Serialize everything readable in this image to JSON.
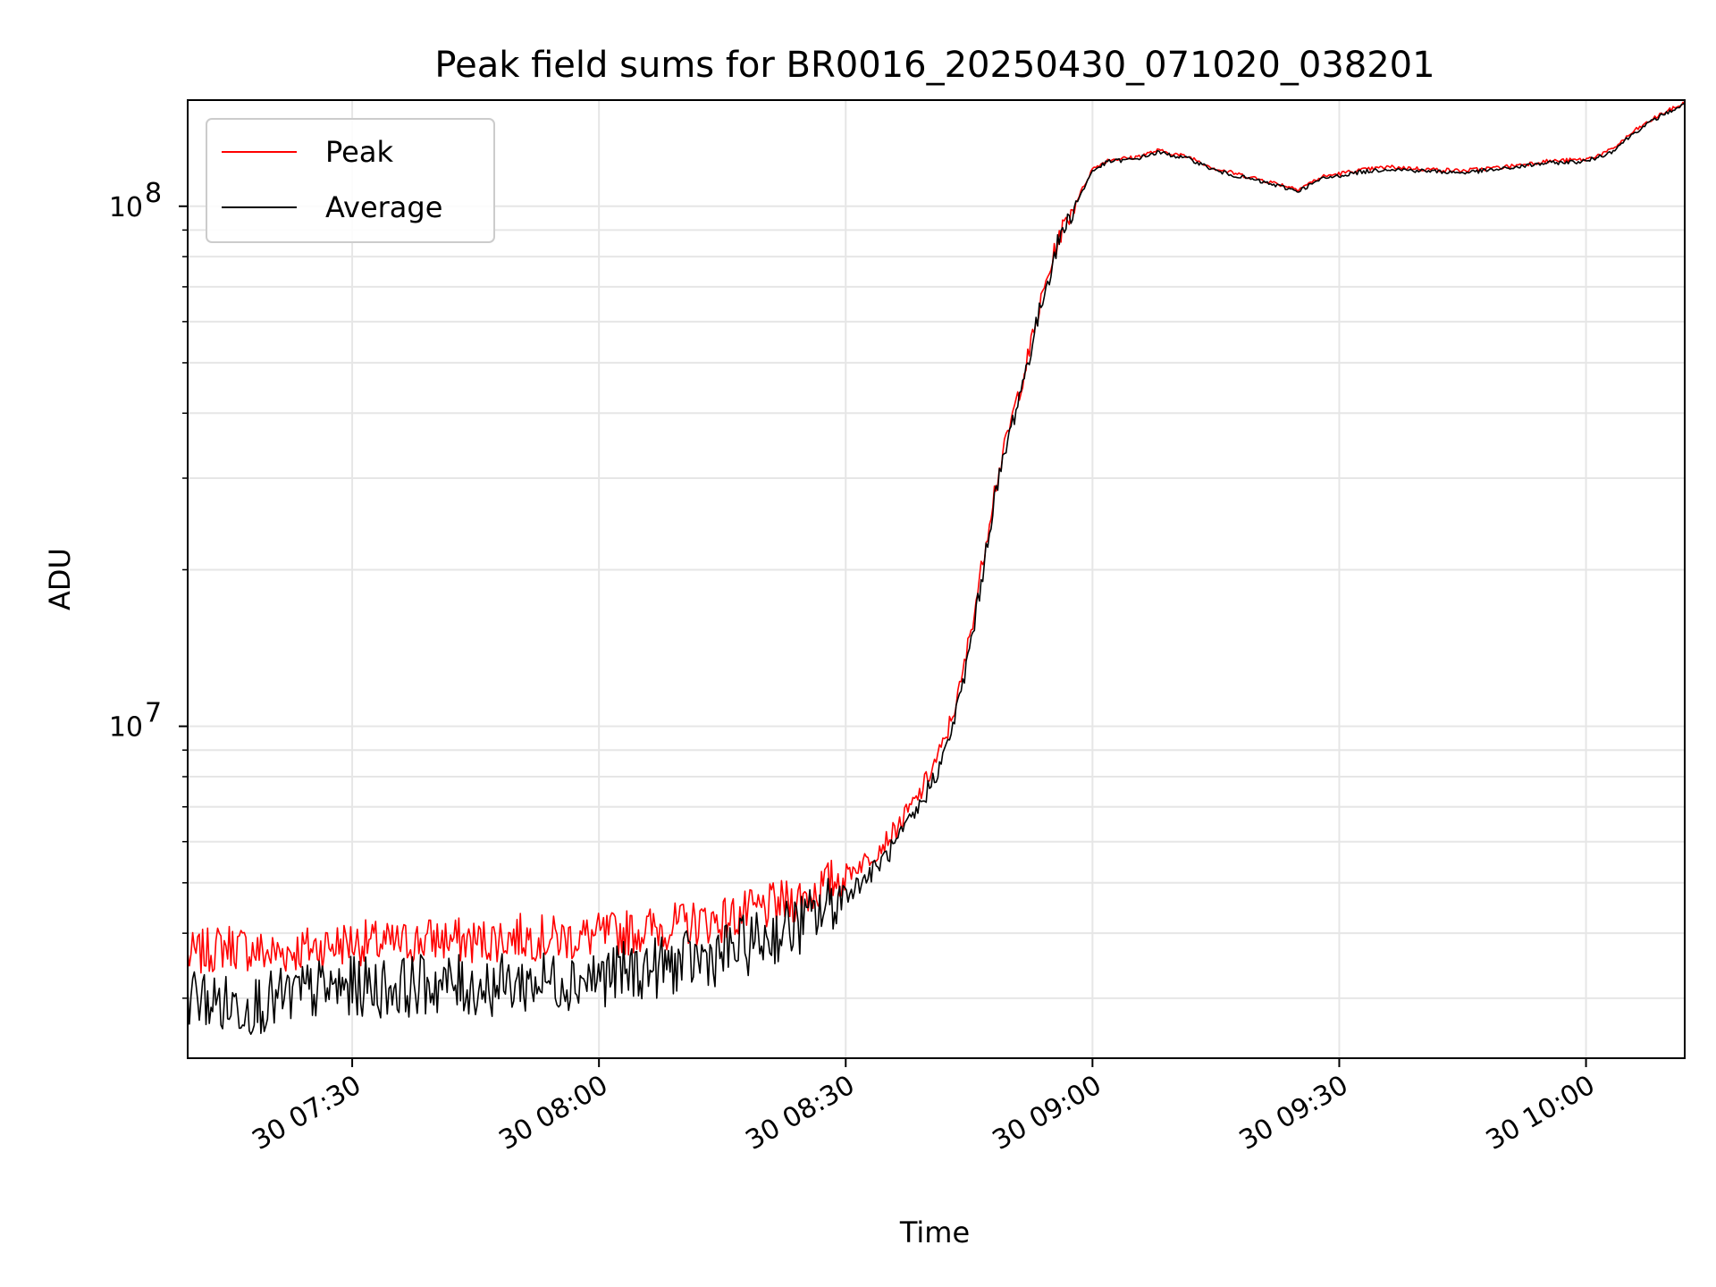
{
  "chart_data": {
    "type": "line",
    "title": "Peak field sums for BR0016_20250430_071020_038201",
    "xlabel": "Time",
    "ylabel": "ADU",
    "x_unit": "date-time",
    "y_scale": "log",
    "xlim": [
      "2025-04-30 07:10",
      "2025-04-30 10:12"
    ],
    "ylim": [
      2300000,
      160000000
    ],
    "grid": true,
    "legend_position": "upper-left",
    "x_ticks": [
      {
        "value": "2025-04-30 07:30",
        "label": "30 07:30"
      },
      {
        "value": "2025-04-30 08:00",
        "label": "30 08:00"
      },
      {
        "value": "2025-04-30 08:30",
        "label": "30 08:30"
      },
      {
        "value": "2025-04-30 09:00",
        "label": "30 09:00"
      },
      {
        "value": "2025-04-30 09:30",
        "label": "30 09:30"
      },
      {
        "value": "2025-04-30 10:00",
        "label": "30 10:00"
      }
    ],
    "y_ticks": [
      {
        "value": 10000000,
        "base": "10",
        "exp": "7"
      },
      {
        "value": 100000000,
        "base": "10",
        "exp": "8"
      }
    ],
    "series": [
      {
        "name": "Peak",
        "color": "#ff0000",
        "points": [
          [
            "2025-04-30 07:10",
            3600000
          ],
          [
            "2025-04-30 07:15",
            3800000
          ],
          [
            "2025-04-30 07:20",
            3650000
          ],
          [
            "2025-04-30 07:25",
            3750000
          ],
          [
            "2025-04-30 07:30",
            3850000
          ],
          [
            "2025-04-30 07:35",
            3800000
          ],
          [
            "2025-04-30 07:40",
            3900000
          ],
          [
            "2025-04-30 07:45",
            3850000
          ],
          [
            "2025-04-30 07:50",
            3950000
          ],
          [
            "2025-04-30 07:55",
            3900000
          ],
          [
            "2025-04-30 08:00",
            3950000
          ],
          [
            "2025-04-30 08:05",
            4050000
          ],
          [
            "2025-04-30 08:10",
            4150000
          ],
          [
            "2025-04-30 08:15",
            4250000
          ],
          [
            "2025-04-30 08:20",
            4450000
          ],
          [
            "2025-04-30 08:25",
            4700000
          ],
          [
            "2025-04-30 08:30",
            5200000
          ],
          [
            "2025-04-30 08:33",
            5600000
          ],
          [
            "2025-04-30 08:36",
            6300000
          ],
          [
            "2025-04-30 08:39",
            7400000
          ],
          [
            "2025-04-30 08:42",
            9300000
          ],
          [
            "2025-04-30 08:44",
            12000000
          ],
          [
            "2025-04-30 08:46",
            18000000
          ],
          [
            "2025-04-30 08:48",
            28000000
          ],
          [
            "2025-04-30 08:50",
            38000000
          ],
          [
            "2025-04-30 08:52",
            50000000
          ],
          [
            "2025-04-30 08:54",
            68000000
          ],
          [
            "2025-04-30 08:56",
            88000000
          ],
          [
            "2025-04-30 08:58",
            102000000
          ],
          [
            "2025-04-30 09:00",
            118000000
          ],
          [
            "2025-04-30 09:02",
            123000000
          ],
          [
            "2025-04-30 09:05",
            124000000
          ],
          [
            "2025-04-30 09:08",
            128000000
          ],
          [
            "2025-04-30 09:12",
            124000000
          ],
          [
            "2025-04-30 09:15",
            118000000
          ],
          [
            "2025-04-30 09:20",
            113000000
          ],
          [
            "2025-04-30 09:25",
            108000000
          ],
          [
            "2025-04-30 09:28",
            114000000
          ],
          [
            "2025-04-30 09:32",
            117000000
          ],
          [
            "2025-04-30 09:36",
            119000000
          ],
          [
            "2025-04-30 09:40",
            118000000
          ],
          [
            "2025-04-30 09:45",
            117000000
          ],
          [
            "2025-04-30 09:50",
            119000000
          ],
          [
            "2025-04-30 09:55",
            122000000
          ],
          [
            "2025-04-30 10:00",
            123000000
          ],
          [
            "2025-04-30 10:03",
            128000000
          ],
          [
            "2025-04-30 10:06",
            140000000
          ],
          [
            "2025-04-30 10:09",
            150000000
          ],
          [
            "2025-04-30 10:12",
            158000000
          ]
        ]
      },
      {
        "name": "Average",
        "color": "#000000",
        "points": [
          [
            "2025-04-30 07:10",
            3050000
          ],
          [
            "2025-04-30 07:15",
            2900000
          ],
          [
            "2025-04-30 07:20",
            2950000
          ],
          [
            "2025-04-30 07:25",
            3100000
          ],
          [
            "2025-04-30 07:30",
            3150000
          ],
          [
            "2025-04-30 07:35",
            3150000
          ],
          [
            "2025-04-30 07:40",
            3200000
          ],
          [
            "2025-04-30 07:45",
            3150000
          ],
          [
            "2025-04-30 07:50",
            3200000
          ],
          [
            "2025-04-30 07:55",
            3250000
          ],
          [
            "2025-04-30 08:00",
            3300000
          ],
          [
            "2025-04-30 08:05",
            3400000
          ],
          [
            "2025-04-30 08:10",
            3500000
          ],
          [
            "2025-04-30 08:15",
            3650000
          ],
          [
            "2025-04-30 08:20",
            3900000
          ],
          [
            "2025-04-30 08:25",
            4200000
          ],
          [
            "2025-04-30 08:30",
            4750000
          ],
          [
            "2025-04-30 08:33",
            5200000
          ],
          [
            "2025-04-30 08:36",
            5900000
          ],
          [
            "2025-04-30 08:39",
            7000000
          ],
          [
            "2025-04-30 08:42",
            8800000
          ],
          [
            "2025-04-30 08:44",
            11500000
          ],
          [
            "2025-04-30 08:46",
            17000000
          ],
          [
            "2025-04-30 08:48",
            27000000
          ],
          [
            "2025-04-30 08:50",
            37000000
          ],
          [
            "2025-04-30 08:52",
            49000000
          ],
          [
            "2025-04-30 08:54",
            67000000
          ],
          [
            "2025-04-30 08:56",
            87000000
          ],
          [
            "2025-04-30 08:58",
            101000000
          ],
          [
            "2025-04-30 09:00",
            117000000
          ],
          [
            "2025-04-30 09:02",
            122000000
          ],
          [
            "2025-04-30 09:05",
            123000000
          ],
          [
            "2025-04-30 09:08",
            127000000
          ],
          [
            "2025-04-30 09:12",
            123000000
          ],
          [
            "2025-04-30 09:15",
            117000000
          ],
          [
            "2025-04-30 09:20",
            112000000
          ],
          [
            "2025-04-30 09:25",
            107000000
          ],
          [
            "2025-04-30 09:28",
            113000000
          ],
          [
            "2025-04-30 09:32",
            116000000
          ],
          [
            "2025-04-30 09:36",
            118000000
          ],
          [
            "2025-04-30 09:40",
            117000000
          ],
          [
            "2025-04-30 09:45",
            116000000
          ],
          [
            "2025-04-30 09:50",
            118000000
          ],
          [
            "2025-04-30 09:55",
            121000000
          ],
          [
            "2025-04-30 10:00",
            122000000
          ],
          [
            "2025-04-30 10:03",
            127000000
          ],
          [
            "2025-04-30 10:06",
            139000000
          ],
          [
            "2025-04-30 10:09",
            149000000
          ],
          [
            "2025-04-30 10:12",
            157000000
          ]
        ]
      }
    ]
  }
}
